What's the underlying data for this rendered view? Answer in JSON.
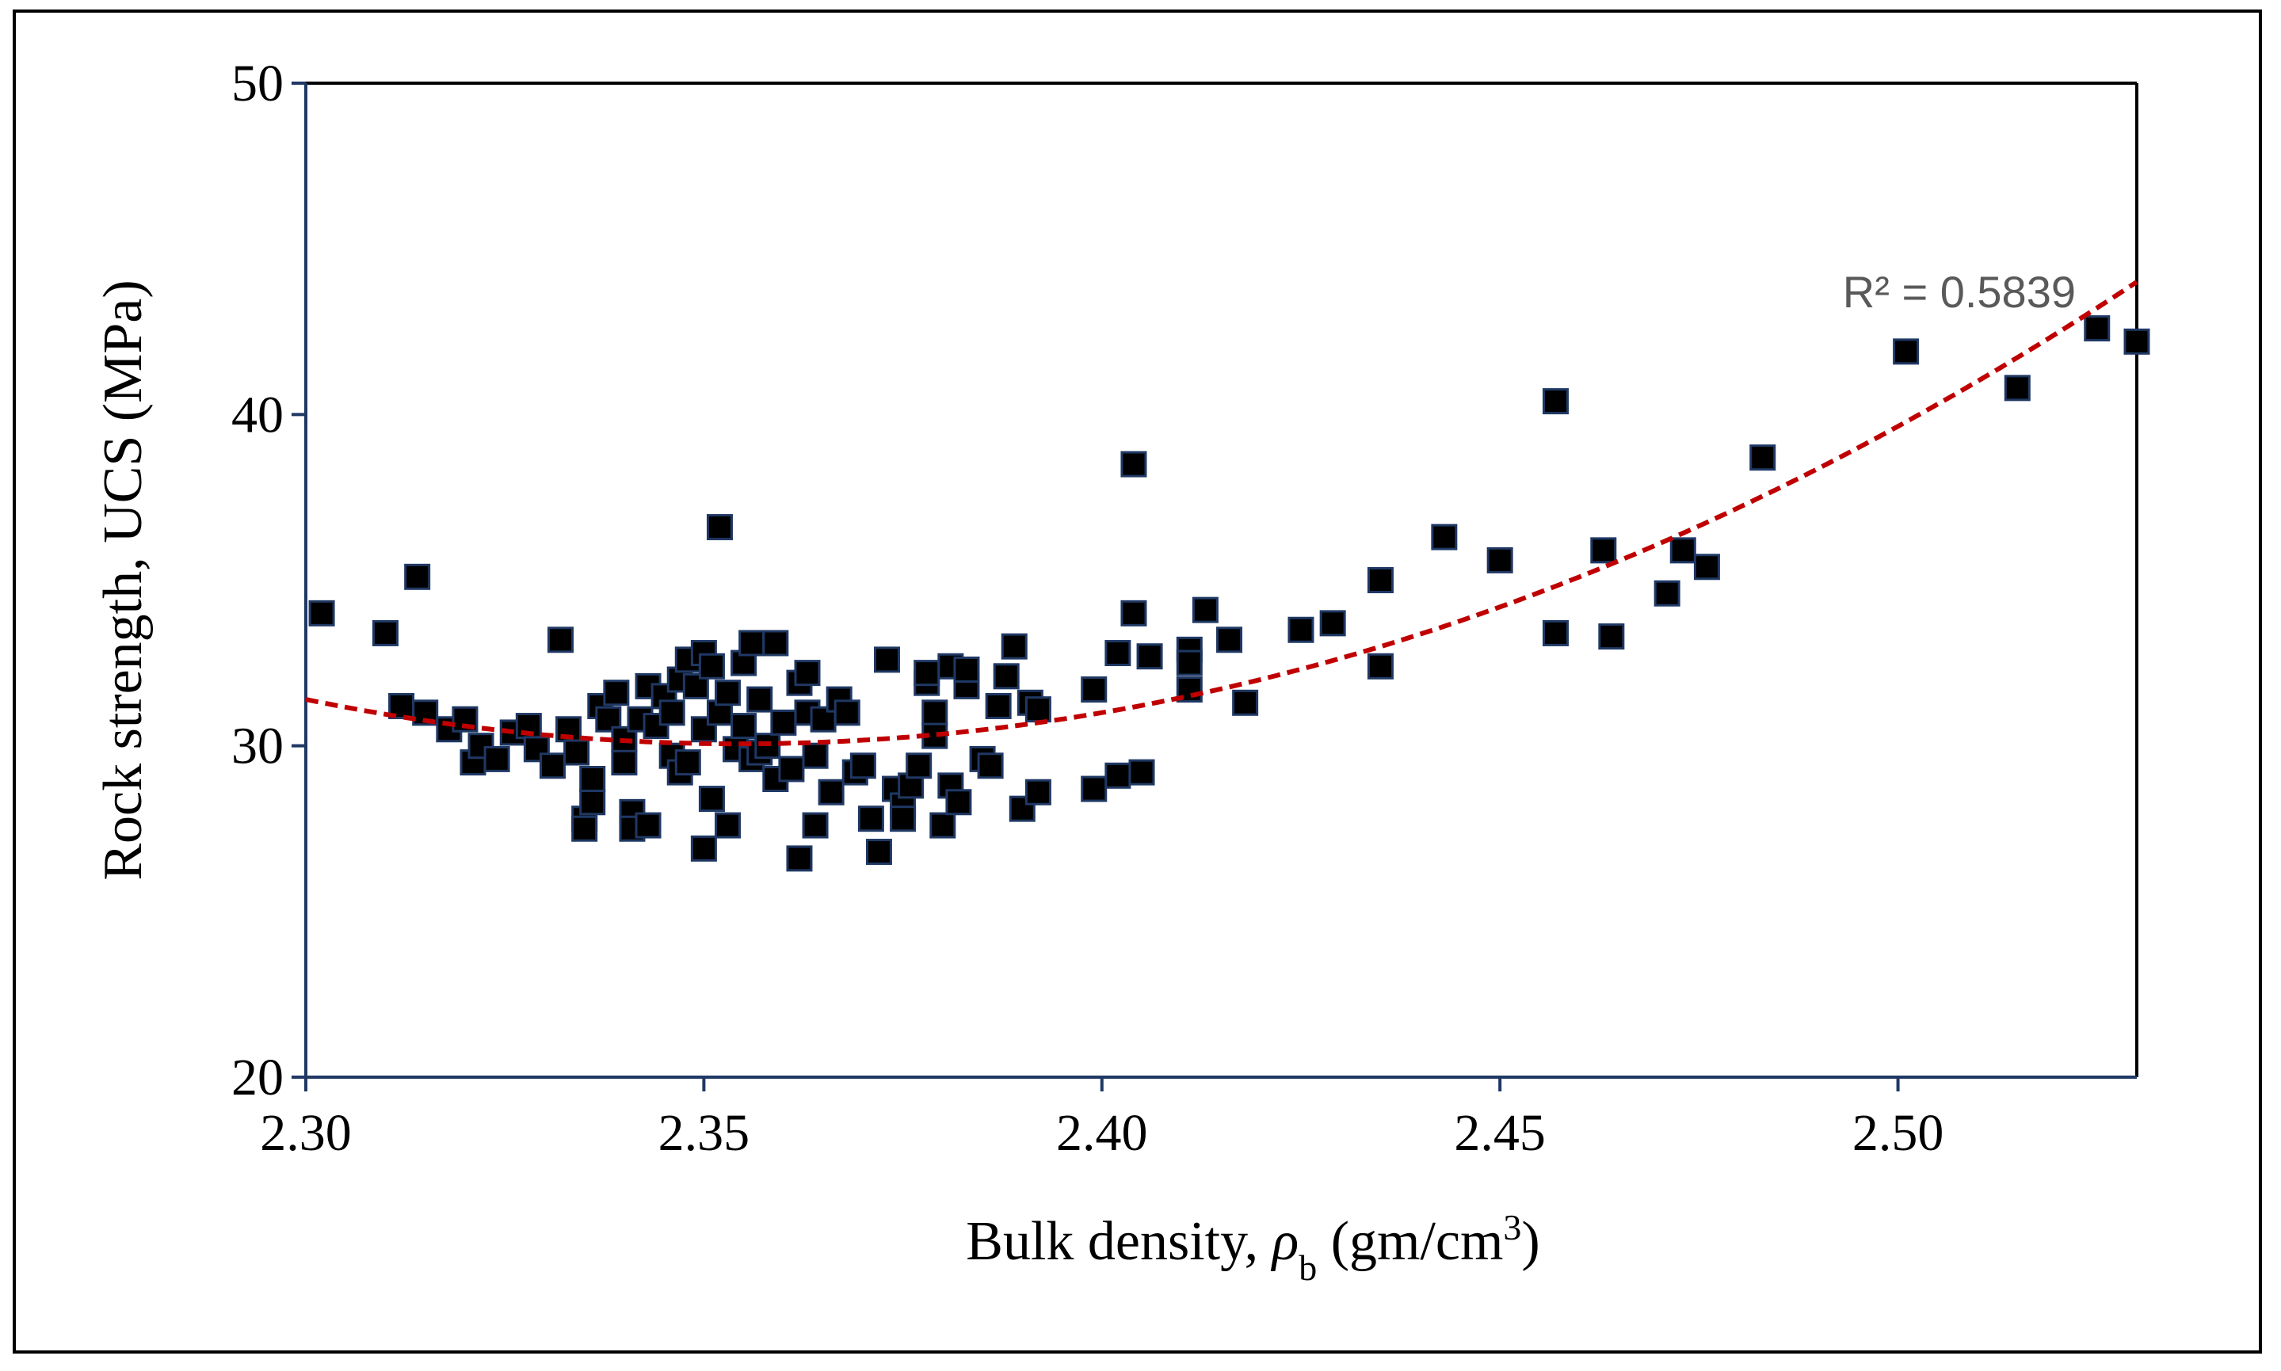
{
  "chart_data": {
    "type": "scatter",
    "xlabel": "Bulk density, ρb (gm/cm3)",
    "xlabel_parts": {
      "prefix": "Bulk density, ",
      "rho": "ρ",
      "sub": "b",
      "mid": " (gm/cm",
      "sup": "3",
      "suffix": ")"
    },
    "ylabel": "Rock strength, UCS (MPa)",
    "xlim": [
      2.3,
      2.53
    ],
    "ylim": [
      20,
      50
    ],
    "xticks": [
      "2.30",
      "2.35",
      "2.40",
      "2.45",
      "2.50"
    ],
    "yticks": [
      "20",
      "30",
      "40",
      "50"
    ],
    "grid": false,
    "marker": "square",
    "colors": {
      "marker_fill": "#000000",
      "marker_edge": "#1f3864",
      "axis": "#1f3864",
      "trend": "#c00000",
      "r2_text": "#595959"
    },
    "trendline": {
      "type": "polynomial-2",
      "r2_label": "R² = 0.5839",
      "points": [
        [
          2.3,
          31.4
        ],
        [
          2.35,
          30.25
        ],
        [
          2.4,
          31.0
        ],
        [
          2.45,
          34.6
        ],
        [
          2.53,
          44.0
        ]
      ]
    },
    "points": [
      [
        2.302,
        34.0
      ],
      [
        2.31,
        33.4
      ],
      [
        2.314,
        35.1
      ],
      [
        2.312,
        31.2
      ],
      [
        2.315,
        31.0
      ],
      [
        2.318,
        30.5
      ],
      [
        2.32,
        30.8
      ],
      [
        2.321,
        29.5
      ],
      [
        2.322,
        30.0
      ],
      [
        2.324,
        29.6
      ],
      [
        2.326,
        30.4
      ],
      [
        2.328,
        30.6
      ],
      [
        2.329,
        29.9
      ],
      [
        2.331,
        29.4
      ],
      [
        2.332,
        33.2
      ],
      [
        2.333,
        30.5
      ],
      [
        2.334,
        29.8
      ],
      [
        2.335,
        27.8
      ],
      [
        2.335,
        27.5
      ],
      [
        2.336,
        28.3
      ],
      [
        2.336,
        29.0
      ],
      [
        2.337,
        31.2
      ],
      [
        2.338,
        30.8
      ],
      [
        2.339,
        31.6
      ],
      [
        2.34,
        29.5
      ],
      [
        2.34,
        30.2
      ],
      [
        2.341,
        28.0
      ],
      [
        2.341,
        27.5
      ],
      [
        2.342,
        30.8
      ],
      [
        2.343,
        31.8
      ],
      [
        2.343,
        27.6
      ],
      [
        2.344,
        30.6
      ],
      [
        2.345,
        31.5
      ],
      [
        2.346,
        29.7
      ],
      [
        2.346,
        31.0
      ],
      [
        2.347,
        32.0
      ],
      [
        2.347,
        29.2
      ],
      [
        2.348,
        32.6
      ],
      [
        2.348,
        29.5
      ],
      [
        2.349,
        31.8
      ],
      [
        2.35,
        32.8
      ],
      [
        2.35,
        30.5
      ],
      [
        2.35,
        26.9
      ],
      [
        2.351,
        32.4
      ],
      [
        2.351,
        28.4
      ],
      [
        2.352,
        31.0
      ],
      [
        2.352,
        36.6
      ],
      [
        2.353,
        31.6
      ],
      [
        2.353,
        27.6
      ],
      [
        2.354,
        29.9
      ],
      [
        2.355,
        32.5
      ],
      [
        2.355,
        30.6
      ],
      [
        2.356,
        33.1
      ],
      [
        2.356,
        29.6
      ],
      [
        2.357,
        31.4
      ],
      [
        2.357,
        29.8
      ],
      [
        2.358,
        30.0
      ],
      [
        2.359,
        33.1
      ],
      [
        2.359,
        29.0
      ],
      [
        2.36,
        30.7
      ],
      [
        2.361,
        29.3
      ],
      [
        2.362,
        31.9
      ],
      [
        2.362,
        26.6
      ],
      [
        2.363,
        31.0
      ],
      [
        2.363,
        32.2
      ],
      [
        2.364,
        29.7
      ],
      [
        2.364,
        27.6
      ],
      [
        2.365,
        30.8
      ],
      [
        2.366,
        28.6
      ],
      [
        2.367,
        31.4
      ],
      [
        2.368,
        31.0
      ],
      [
        2.369,
        29.2
      ],
      [
        2.37,
        29.4
      ],
      [
        2.371,
        27.8
      ],
      [
        2.372,
        26.8
      ],
      [
        2.373,
        32.6
      ],
      [
        2.374,
        28.7
      ],
      [
        2.375,
        28.2
      ],
      [
        2.375,
        27.8
      ],
      [
        2.376,
        28.8
      ],
      [
        2.377,
        29.4
      ],
      [
        2.378,
        31.9
      ],
      [
        2.378,
        32.2
      ],
      [
        2.379,
        31.0
      ],
      [
        2.379,
        30.3
      ],
      [
        2.38,
        27.6
      ],
      [
        2.381,
        28.8
      ],
      [
        2.381,
        32.4
      ],
      [
        2.382,
        28.3
      ],
      [
        2.383,
        31.8
      ],
      [
        2.383,
        32.3
      ],
      [
        2.385,
        29.6
      ],
      [
        2.386,
        29.4
      ],
      [
        2.387,
        31.2
      ],
      [
        2.388,
        32.1
      ],
      [
        2.389,
        33.0
      ],
      [
        2.39,
        28.1
      ],
      [
        2.391,
        31.3
      ],
      [
        2.392,
        28.6
      ],
      [
        2.392,
        31.1
      ],
      [
        2.399,
        31.7
      ],
      [
        2.399,
        28.7
      ],
      [
        2.402,
        32.8
      ],
      [
        2.402,
        29.1
      ],
      [
        2.404,
        38.5
      ],
      [
        2.404,
        34.0
      ],
      [
        2.405,
        29.2
      ],
      [
        2.406,
        32.7
      ],
      [
        2.411,
        32.9
      ],
      [
        2.411,
        32.5
      ],
      [
        2.411,
        31.7
      ],
      [
        2.413,
        34.1
      ],
      [
        2.416,
        33.2
      ],
      [
        2.418,
        31.3
      ],
      [
        2.425,
        33.5
      ],
      [
        2.429,
        33.7
      ],
      [
        2.435,
        35.0
      ],
      [
        2.435,
        32.4
      ],
      [
        2.443,
        36.3
      ],
      [
        2.45,
        35.6
      ],
      [
        2.457,
        40.4
      ],
      [
        2.457,
        33.4
      ],
      [
        2.463,
        35.9
      ],
      [
        2.464,
        33.3
      ],
      [
        2.471,
        34.6
      ],
      [
        2.473,
        35.9
      ],
      [
        2.476,
        35.4
      ],
      [
        2.483,
        38.7
      ],
      [
        2.501,
        41.9
      ],
      [
        2.515,
        40.8
      ],
      [
        2.525,
        42.6
      ],
      [
        2.53,
        42.2
      ]
    ]
  }
}
